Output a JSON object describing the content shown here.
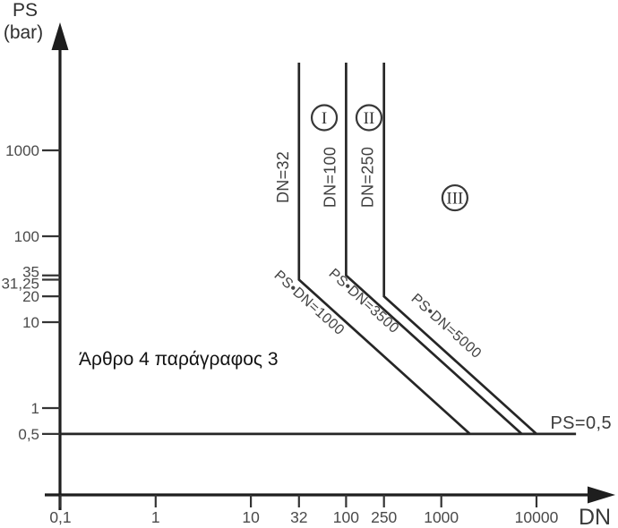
{
  "chart_data": {
    "type": "line",
    "title": "",
    "xlabel": "DN",
    "ylabel": "PS (bar)",
    "x_axis": {
      "label": "DN",
      "scale": "log",
      "range": [
        0.1,
        30000
      ],
      "ticks": [
        {
          "value": 0.1,
          "label": "0,1"
        },
        {
          "value": 1,
          "label": "1"
        },
        {
          "value": 10,
          "label": "10"
        },
        {
          "value": 32,
          "label": "32"
        },
        {
          "value": 100,
          "label": "100"
        },
        {
          "value": 250,
          "label": "250"
        },
        {
          "value": 1000,
          "label": "1000"
        },
        {
          "value": 10000,
          "label": "10000"
        }
      ]
    },
    "y_axis": {
      "label_lines": [
        "PS",
        "(bar)"
      ],
      "scale": "log",
      "range": [
        0.1,
        12000
      ],
      "ticks": [
        {
          "value": 1000,
          "label": "1000"
        },
        {
          "value": 100,
          "label": "100"
        },
        {
          "value": 35,
          "label": "35"
        },
        {
          "value": 31.25,
          "label": "31,25"
        },
        {
          "value": 20,
          "label": "20"
        },
        {
          "value": 10,
          "label": "10"
        },
        {
          "value": 1,
          "label": "1"
        },
        {
          "value": 0.5,
          "label": "0,5"
        }
      ]
    },
    "boundaries": [
      {
        "dn": 32,
        "bend_ps": 31.25,
        "product": 1000,
        "dn_label": "DN=32",
        "product_label": "PS•DN=1000"
      },
      {
        "dn": 100,
        "bend_ps": 35,
        "product": 3500,
        "dn_label": "DN=100",
        "product_label": "PS•DN=3500"
      },
      {
        "dn": 250,
        "bend_ps": 20,
        "product": 5000,
        "dn_label": "DN=250",
        "product_label": "PS•DN=5000"
      }
    ],
    "baseline": {
      "ps": 0.5,
      "label": "PS=0,5",
      "dn_start": 0.1,
      "dn_end": 26000
    },
    "zones": [
      {
        "label": "I",
        "dn": 59,
        "ps": 2400
      },
      {
        "label": "II",
        "dn": 174,
        "ps": 2400
      },
      {
        "label": "III",
        "dn": 1390,
        "ps": 280
      }
    ],
    "annotation": "Άρθρο 4 παράγραφος 3",
    "grid": false,
    "line_color": "#262626"
  }
}
